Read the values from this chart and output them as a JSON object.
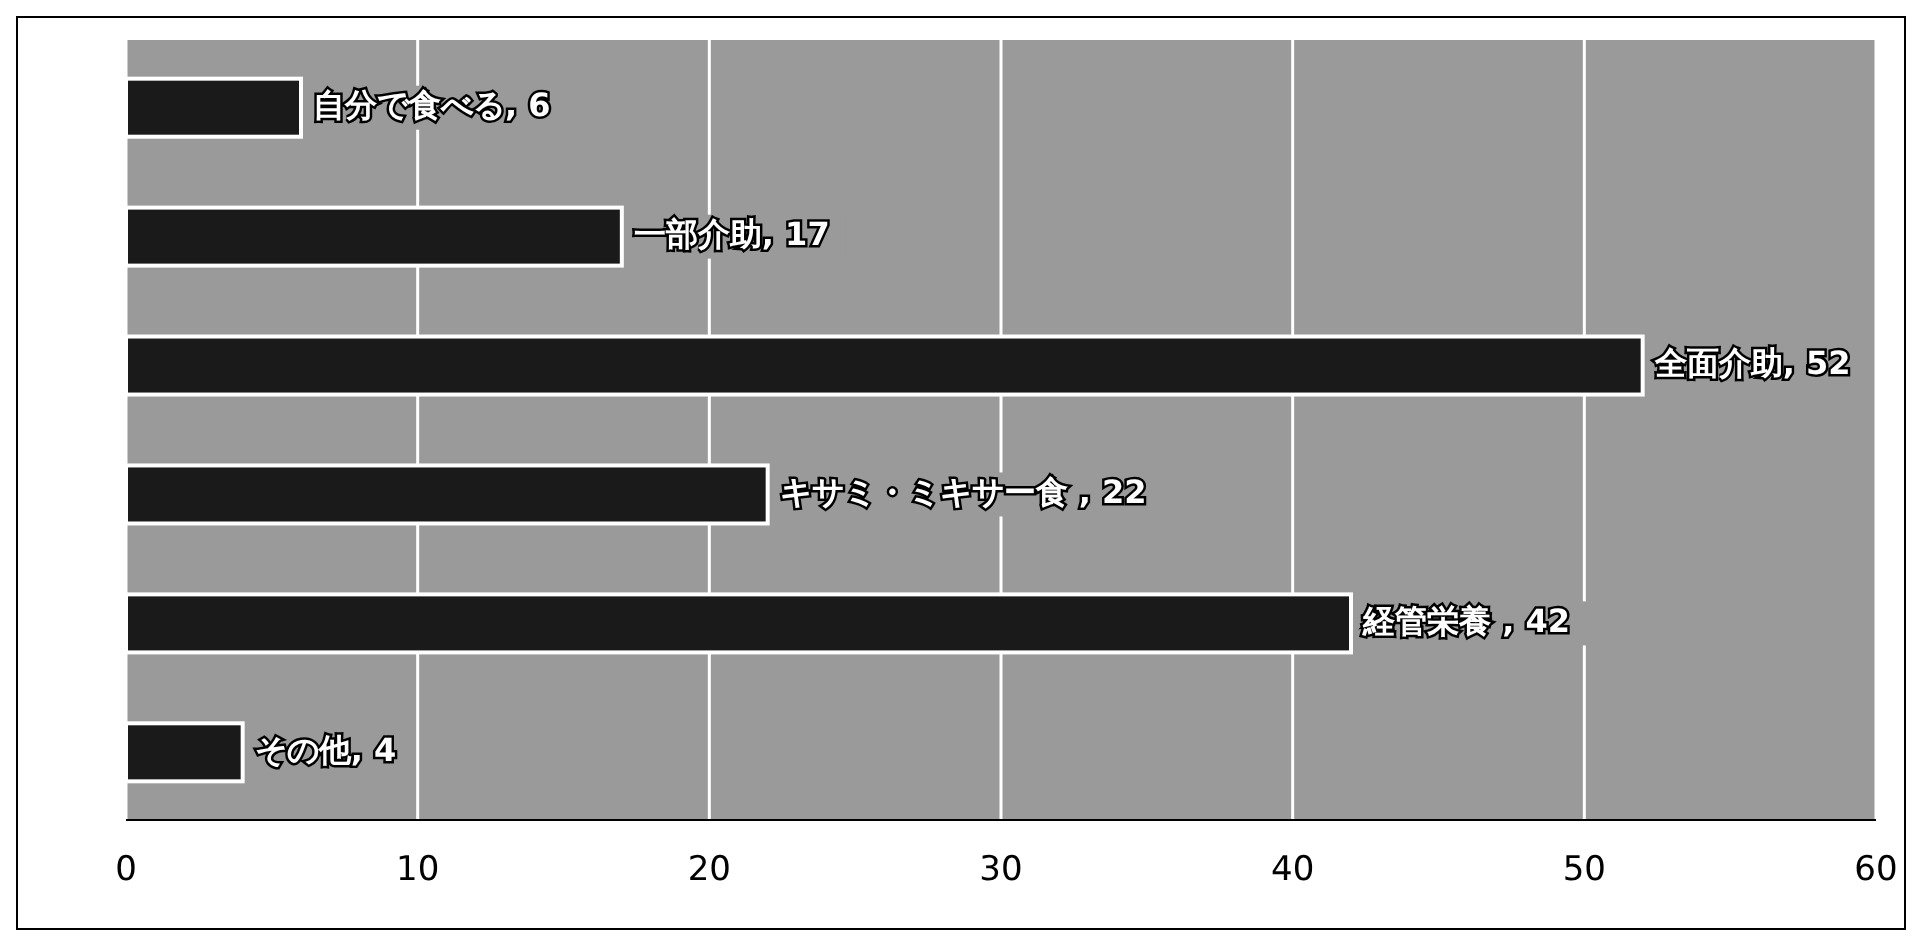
{
  "chart_data": {
    "type": "bar",
    "orientation": "horizontal",
    "categories": [
      null,
      null,
      null,
      null,
      null,
      null
    ],
    "values": [
      6,
      17,
      52,
      22,
      42,
      4
    ],
    "value_labels": [
      "自分で食べる, 6",
      "一部介助, 17",
      "全面介助, 52",
      "キサミ・ミキサー食 , 22",
      "経管栄養 , 42",
      "その他, 4"
    ],
    "color": "#1a1a1a",
    "xlim": [
      0,
      60
    ],
    "xticks": [
      0,
      10,
      20,
      30,
      40,
      50,
      60
    ],
    "grid": "x",
    "tick_labels": "x"
  }
}
